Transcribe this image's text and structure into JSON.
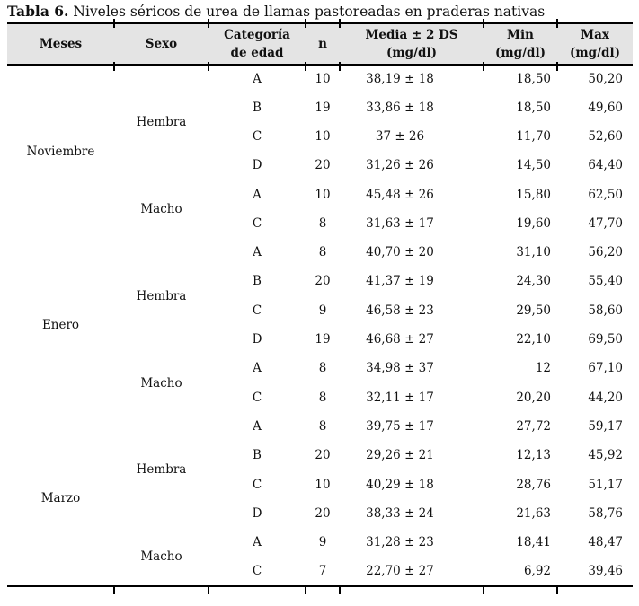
{
  "title": {
    "prefix": "Tabla 6.",
    "text": "Niveles séricos de urea de llamas pastoreadas en praderas nativas"
  },
  "colors": {
    "header_bg": "#e4e4e4",
    "rule": "#000000",
    "text": "#111111",
    "page_bg": "#ffffff"
  },
  "table": {
    "headers": {
      "meses": "Meses",
      "sexo": "Sexo",
      "categoria": "Categoría\nde edad",
      "n": "n",
      "media": "Media ± 2 DS\n(mg/dl)",
      "min": "Min\n(mg/dl)",
      "max": "Max\n(mg/dl)"
    },
    "groups": [
      {
        "month": "Noviembre",
        "sexes": [
          {
            "sex": "Hembra",
            "rows": [
              {
                "cat": "A",
                "n": "10",
                "media": "38,19 ± 18",
                "min": "18,50",
                "max": "50,20"
              },
              {
                "cat": "B",
                "n": "19",
                "media": "33,86 ± 18",
                "min": "18,50",
                "max": "49,60"
              },
              {
                "cat": "C",
                "n": "10",
                "media": "37 ± 26",
                "min": "11,70",
                "max": "52,60"
              },
              {
                "cat": "D",
                "n": "20",
                "media": "31,26 ± 26",
                "min": "14,50",
                "max": "64,40"
              }
            ]
          },
          {
            "sex": "Macho",
            "rows": [
              {
                "cat": "A",
                "n": "10",
                "media": "45,48 ± 26",
                "min": "15,80",
                "max": "62,50"
              },
              {
                "cat": "C",
                "n": "8",
                "media": "31,63 ± 17",
                "min": "19,60",
                "max": "47,70"
              }
            ]
          }
        ]
      },
      {
        "month": "Enero",
        "sexes": [
          {
            "sex": "Hembra",
            "rows": [
              {
                "cat": "A",
                "n": "8",
                "media": "40,70 ± 20",
                "min": "31,10",
                "max": "56,20"
              },
              {
                "cat": "B",
                "n": "20",
                "media": "41,37 ± 19",
                "min": "24,30",
                "max": "55,40"
              },
              {
                "cat": "C",
                "n": "9",
                "media": "46,58 ± 23",
                "min": "29,50",
                "max": "58,60"
              },
              {
                "cat": "D",
                "n": "19",
                "media": "46,68 ± 27",
                "min": "22,10",
                "max": "69,50"
              }
            ]
          },
          {
            "sex": "Macho",
            "rows": [
              {
                "cat": "A",
                "n": "8",
                "media": "34,98 ± 37",
                "min": "12",
                "max": "67,10"
              },
              {
                "cat": "C",
                "n": "8",
                "media": "32,11 ± 17",
                "min": "20,20",
                "max": "44,20"
              }
            ]
          }
        ]
      },
      {
        "month": "Marzo",
        "sexes": [
          {
            "sex": "Hembra",
            "rows": [
              {
                "cat": "A",
                "n": "8",
                "media": "39,75 ± 17",
                "min": "27,72",
                "max": "59,17"
              },
              {
                "cat": "B",
                "n": "20",
                "media": "29,26 ± 21",
                "min": "12,13",
                "max": "45,92"
              },
              {
                "cat": "C",
                "n": "10",
                "media": "40,29 ± 18",
                "min": "28,76",
                "max": "51,17"
              },
              {
                "cat": "D",
                "n": "20",
                "media": "38,33 ± 24",
                "min": "21,63",
                "max": "58,76"
              }
            ]
          },
          {
            "sex": "Macho",
            "rows": [
              {
                "cat": "A",
                "n": "9",
                "media": "31,28 ± 23",
                "min": "18,41",
                "max": "48,47"
              },
              {
                "cat": "C",
                "n": "7",
                "media": "22,70 ± 27",
                "min": "6,92",
                "max": "39,46"
              }
            ]
          }
        ]
      }
    ]
  }
}
